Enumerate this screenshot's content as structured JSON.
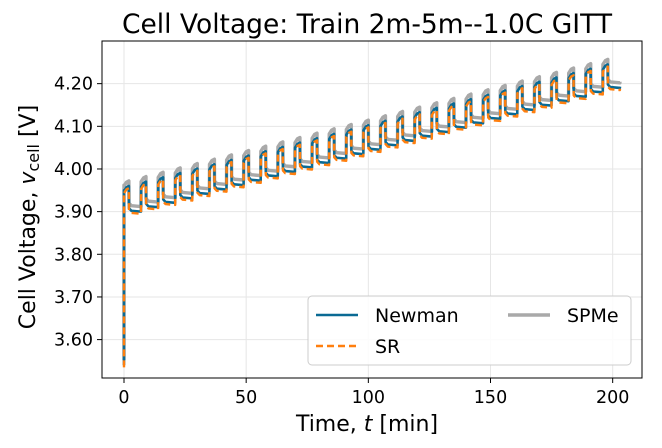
{
  "chart_data": {
    "type": "line",
    "title": "Cell Voltage: Train 2m-5m--1.0C GITT",
    "xlabel_main": "Time, ",
    "xlabel_var": "t",
    "xlabel_unit": " [min]",
    "ylabel_main": "Cell Voltage, ",
    "ylabel_var": "v",
    "ylabel_sub": "cell",
    "ylabel_unit": " [V]",
    "xlim": [
      -9,
      212
    ],
    "ylim": [
      3.51,
      4.3
    ],
    "xticks": [
      0,
      50,
      100,
      150,
      200
    ],
    "xtick_labels": [
      "0",
      "50",
      "100",
      "150",
      "200"
    ],
    "yticks": [
      3.6,
      3.7,
      3.8,
      3.9,
      4.0,
      4.1,
      4.2
    ],
    "ytick_labels": [
      "3.60",
      "3.70",
      "3.80",
      "3.90",
      "4.00",
      "4.10",
      "4.20"
    ],
    "grid": true,
    "legend_position": "bottom-right",
    "legend_columns": 2,
    "gitt": {
      "pulses": 29,
      "period_min": 7,
      "pulse_min": 2,
      "end_min": 203,
      "start_v": 3.54,
      "relax_v_start": 3.9,
      "relax_v_end": 4.19,
      "pulse_v_start": 3.96,
      "pulse_v_end": 4.245
    },
    "series": [
      {
        "name": "Newman",
        "color": "#0a6a94",
        "style": "solid",
        "offset_v": 0.0
      },
      {
        "name": "SR",
        "color": "#ff7f0e",
        "style": "dashed",
        "offset_v": -0.005
      },
      {
        "name": "SPMe",
        "color": "#a9a9a9",
        "style": "solid",
        "offset_v": 0.012
      }
    ]
  }
}
